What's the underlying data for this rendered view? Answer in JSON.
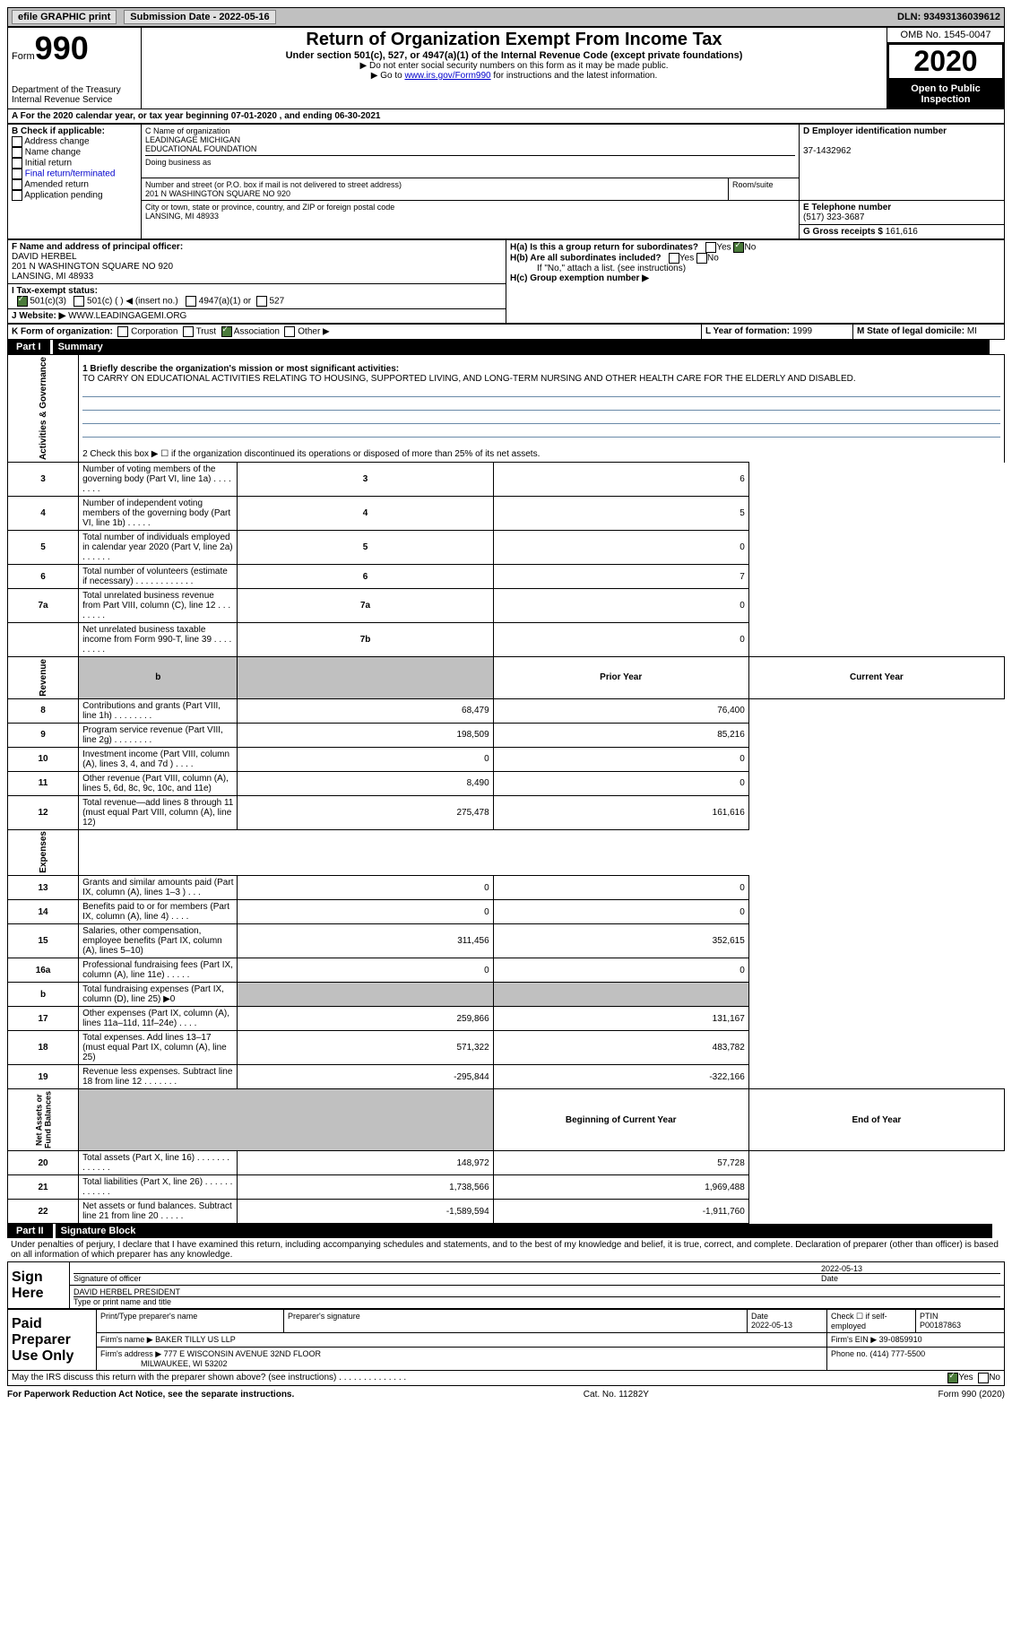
{
  "header": {
    "efile": "efile GRAPHIC print",
    "submission_label": "Submission Date - 2022-05-16",
    "dln": "DLN: 93493136039612"
  },
  "form_header": {
    "form_word": "Form",
    "form_num": "990",
    "dept": "Department of the Treasury\nInternal Revenue Service",
    "title": "Return of Organization Exempt From Income Tax",
    "subtitle": "Under section 501(c), 527, or 4947(a)(1) of the Internal Revenue Code (except private foundations)",
    "instr1": "▶ Do not enter social security numbers on this form as it may be made public.",
    "instr2_pre": "▶ Go to ",
    "instr2_link": "www.irs.gov/Form990",
    "instr2_post": " for instructions and the latest information.",
    "omb": "OMB No. 1545-0047",
    "year": "2020",
    "open": "Open to Public Inspection"
  },
  "period": {
    "line": "For the 2020 calendar year, or tax year beginning 07-01-2020   , and ending 06-30-2021"
  },
  "box_b": {
    "label": "B Check if applicable:",
    "opts": [
      "Address change",
      "Name change",
      "Initial return",
      "Final return/terminated",
      "Amended return",
      "Application pending"
    ]
  },
  "box_c": {
    "label": "C Name of organization",
    "name": "LEADINGAGE MICHIGAN\nEDUCATIONAL FOUNDATION",
    "dba_label": "Doing business as",
    "addr_label": "Number and street (or P.O. box if mail is not delivered to street address)",
    "room_label": "Room/suite",
    "addr": "201 N WASHINGTON SQUARE NO 920",
    "city_label": "City or town, state or province, country, and ZIP or foreign postal code",
    "city": "LANSING, MI  48933"
  },
  "box_d": {
    "label": "D Employer identification number",
    "value": "37-1432962"
  },
  "box_e": {
    "label": "E Telephone number",
    "value": "(517) 323-3687"
  },
  "box_g": {
    "label": "G Gross receipts $ ",
    "value": "161,616"
  },
  "box_f": {
    "label": "F  Name and address of principal officer:",
    "name": "DAVID HERBEL",
    "addr1": "201 N WASHINGTON SQUARE NO 920",
    "addr2": "LANSING, MI  48933"
  },
  "box_h": {
    "a_label": "H(a)  Is this a group return for subordinates?",
    "b_label": "H(b)  Are all subordinates included?",
    "b_note": "If \"No,\" attach a list. (see instructions)",
    "c_label": "H(c)  Group exemption number ▶",
    "yes": "Yes",
    "no": "No"
  },
  "box_i": {
    "label": "I   Tax-exempt status:",
    "o1": "501(c)(3)",
    "o2": "501(c) (  ) ◀ (insert no.)",
    "o3": "4947(a)(1) or",
    "o4": "527"
  },
  "box_j": {
    "label": "J   Website: ▶",
    "value": " WWW.LEADINGAGEMI.ORG"
  },
  "box_k": {
    "label": "K Form of organization:",
    "o1": "Corporation",
    "o2": "Trust",
    "o3": "Association",
    "o4": "Other ▶"
  },
  "box_l": {
    "label": "L Year of formation: ",
    "value": "1999"
  },
  "box_m": {
    "label": "M State of legal domicile: ",
    "value": "MI"
  },
  "part1": {
    "tag": "Part I",
    "title": "Summary",
    "q1_label": "1   Briefly describe the organization's mission or most significant activities:",
    "q1_text": "TO CARRY ON EDUCATIONAL ACTIVITIES RELATING TO HOUSING, SUPPORTED LIVING, AND LONG-TERM NURSING AND OTHER HEALTH CARE FOR THE ELDERLY AND DISABLED.",
    "q2": "2   Check this box ▶ ☐  if the organization discontinued its operations or disposed of more than 25% of its net assets.",
    "gov_rows": [
      {
        "n": "3",
        "t": "Number of voting members of the governing body (Part VI, line 1a)  .    .    .    .    .    .    .    .",
        "k": "3",
        "v": "6"
      },
      {
        "n": "4",
        "t": "Number of independent voting members of the governing body (Part VI, line 1b)    .    .    .    .    .",
        "k": "4",
        "v": "5"
      },
      {
        "n": "5",
        "t": "Total number of individuals employed in calendar year 2020 (Part V, line 2a)    .    .    .    .    .    .",
        "k": "5",
        "v": "0"
      },
      {
        "n": "6",
        "t": "Total number of volunteers (estimate if necessary)    .    .    .    .    .    .    .    .    .    .    .    .",
        "k": "6",
        "v": "7"
      },
      {
        "n": "7a",
        "t": "Total unrelated business revenue from Part VIII, column (C), line 12   .    .    .    .    .    .    .    .",
        "k": "7a",
        "v": "0"
      },
      {
        "n": "",
        "t": "Net unrelated business taxable income from Form 990-T, line 39    .    .    .    .    .    .    .    .    .",
        "k": "7b",
        "v": "0"
      }
    ],
    "col_headers": {
      "b": "b",
      "prior": "Prior Year",
      "current": "Current Year"
    },
    "rev_rows": [
      {
        "n": "8",
        "t": "Contributions and grants (Part VIII, line 1h)   .    .    .    .    .    .    .    .",
        "p": "68,479",
        "c": "76,400"
      },
      {
        "n": "9",
        "t": "Program service revenue (Part VIII, line 2g)   .    .    .    .    .    .    .    .",
        "p": "198,509",
        "c": "85,216"
      },
      {
        "n": "10",
        "t": "Investment income (Part VIII, column (A), lines 3, 4, and 7d )   .    .    .    .",
        "p": "0",
        "c": "0"
      },
      {
        "n": "11",
        "t": "Other revenue (Part VIII, column (A), lines 5, 6d, 8c, 9c, 10c, and 11e)",
        "p": "8,490",
        "c": "0"
      },
      {
        "n": "12",
        "t": "Total revenue—add lines 8 through 11 (must equal Part VIII, column (A), line 12)",
        "p": "275,478",
        "c": "161,616"
      }
    ],
    "exp_rows": [
      {
        "n": "13",
        "t": "Grants and similar amounts paid (Part IX, column (A), lines 1–3 )   .    .    .",
        "p": "0",
        "c": "0"
      },
      {
        "n": "14",
        "t": "Benefits paid to or for members (Part IX, column (A), line 4)   .    .    .    .",
        "p": "0",
        "c": "0"
      },
      {
        "n": "15",
        "t": "Salaries, other compensation, employee benefits (Part IX, column (A), lines 5–10)",
        "p": "311,456",
        "c": "352,615"
      },
      {
        "n": "16a",
        "t": "Professional fundraising fees (Part IX, column (A), line 11e)   .    .    .    .    .",
        "p": "0",
        "c": "0"
      },
      {
        "n": "b",
        "t": "Total fundraising expenses (Part IX, column (D), line 25) ▶0",
        "p": "grey",
        "c": "grey"
      },
      {
        "n": "17",
        "t": "Other expenses (Part IX, column (A), lines 11a–11d, 11f–24e)   .    .    .    .",
        "p": "259,866",
        "c": "131,167"
      },
      {
        "n": "18",
        "t": "Total expenses. Add lines 13–17 (must equal Part IX, column (A), line 25)",
        "p": "571,322",
        "c": "483,782"
      },
      {
        "n": "19",
        "t": "Revenue less expenses. Subtract line 18 from line 12   .    .    .    .    .    .    .",
        "p": "-295,844",
        "c": "-322,166"
      }
    ],
    "na_headers": {
      "begin": "Beginning of Current Year",
      "end": "End of Year"
    },
    "na_rows": [
      {
        "n": "20",
        "t": "Total assets (Part X, line 16)   .    .    .    .    .    .    .    .    .    .    .    .    .",
        "p": "148,972",
        "c": "57,728"
      },
      {
        "n": "21",
        "t": "Total liabilities (Part X, line 26)   .    .    .    .    .    .    .    .    .    .    .    .",
        "p": "1,738,566",
        "c": "1,969,488"
      },
      {
        "n": "22",
        "t": "Net assets or fund balances. Subtract line 21 from line 20   .    .    .    .    .",
        "p": "-1,589,594",
        "c": "-1,911,760"
      }
    ],
    "section_labels": {
      "gov": "Activities & Governance",
      "rev": "Revenue",
      "exp": "Expenses",
      "na": "Net Assets or\nFund Balances"
    }
  },
  "part2": {
    "tag": "Part II",
    "title": "Signature Block",
    "decl": "Under penalties of perjury, I declare that I have examined this return, including accompanying schedules and statements, and to the best of my knowledge and belief, it is true, correct, and complete. Declaration of preparer (other than officer) is based on all information of which preparer has any knowledge.",
    "sign_here": "Sign Here",
    "sig_officer": "Signature of officer",
    "sig_date": "2022-05-13",
    "date_label": "Date",
    "officer_name": "DAVID HERBEL  PRESIDENT",
    "type_name": "Type or print name and title",
    "paid_label": "Paid Preparer Use Only",
    "col_print": "Print/Type preparer's name",
    "col_sig": "Preparer's signature",
    "col_date": "Date",
    "col_date_val": "2022-05-13",
    "col_check": "Check ☐ if self-employed",
    "col_ptin": "PTIN",
    "ptin": "P00187863",
    "firm_name_label": "Firm's name    ▶ ",
    "firm_name": "BAKER TILLY US LLP",
    "firm_ein_label": "Firm's EIN ▶ ",
    "firm_ein": "39-0859910",
    "firm_addr_label": "Firm's address ▶ ",
    "firm_addr1": "777 E WISCONSIN AVENUE 32ND FLOOR",
    "firm_addr2": "MILWAUKEE, WI  53202",
    "phone_label": "Phone no. ",
    "phone": "(414) 777-5500",
    "discuss": "May the IRS discuss this return with the preparer shown above? (see instructions)   .    .    .    .    .    .    .    .    .    .    .    .    .    .",
    "yes": "Yes",
    "no": "No"
  },
  "footer": {
    "left": "For Paperwork Reduction Act Notice, see the separate instructions.",
    "mid": "Cat. No. 11282Y",
    "right": "Form 990 (2020)"
  }
}
